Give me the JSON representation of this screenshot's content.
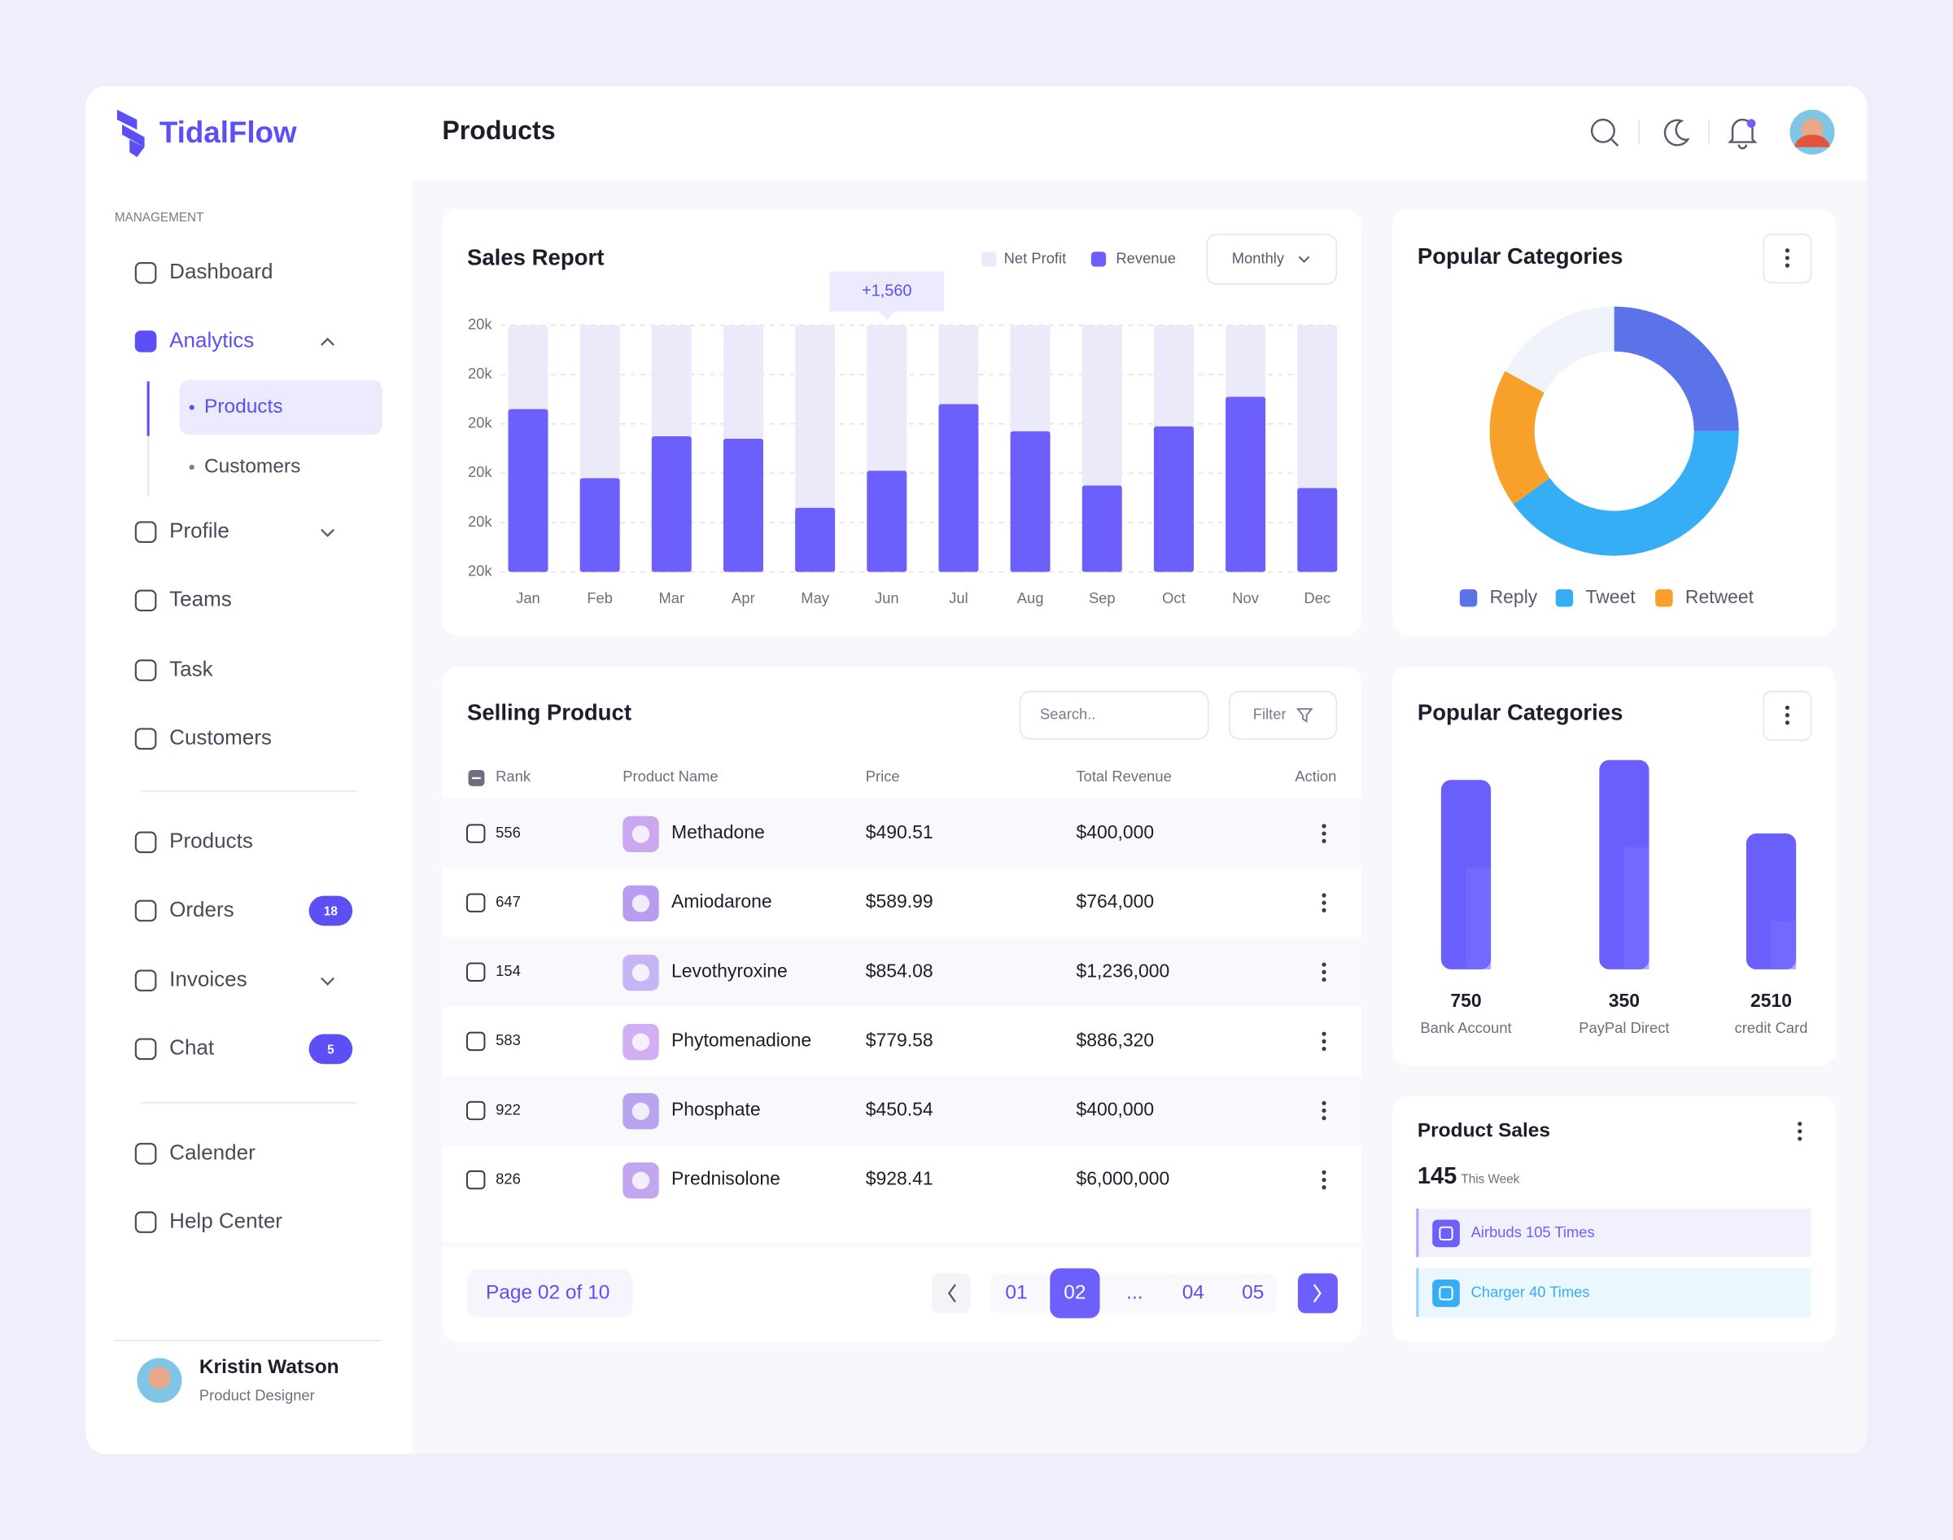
{
  "brand": "TidalFlow",
  "header": {
    "title": "Products"
  },
  "sidebar": {
    "section": "MANAGEMENT",
    "items": [
      {
        "label": "Dashboard"
      },
      {
        "label": "Analytics",
        "children": [
          "Products",
          "Customers"
        ]
      },
      {
        "label": "Profile"
      },
      {
        "label": "Teams"
      },
      {
        "label": "Task"
      },
      {
        "label": "Customers"
      },
      {
        "label": "Products"
      },
      {
        "label": "Orders",
        "badge": 18
      },
      {
        "label": "Invoices"
      },
      {
        "label": "Chat",
        "badge": 5
      },
      {
        "label": "Calender"
      },
      {
        "label": "Help Center"
      }
    ],
    "user": {
      "name": "Kristin Watson",
      "role": "Product Designer"
    }
  },
  "sales_report": {
    "period": "Monthly"
  },
  "chart_data": [
    {
      "type": "bar",
      "title": "Sales Report",
      "annotation": "+1,560",
      "categories": [
        "Jan",
        "Feb",
        "Mar",
        "Apr",
        "May",
        "Jun",
        "Jul",
        "Aug",
        "Sep",
        "Oct",
        "Nov",
        "Dec"
      ],
      "series": [
        {
          "name": "Net Profit",
          "color": "#ebeafb",
          "values": [
            100,
            100,
            100,
            100,
            100,
            100,
            100,
            100,
            100,
            100,
            100,
            100
          ]
        },
        {
          "name": "Revenue",
          "color": "#6c5ffc",
          "values": [
            66,
            38,
            55,
            54,
            26,
            41,
            68,
            57,
            35,
            59,
            71,
            34
          ]
        }
      ],
      "ylim": [
        0,
        100
      ],
      "yticks": [
        {
          "value": 0,
          "label": "20k"
        },
        {
          "value": 20,
          "label": "20k"
        },
        {
          "value": 40,
          "label": "20k"
        },
        {
          "value": 60,
          "label": "20k"
        },
        {
          "value": 80,
          "label": "20k"
        },
        {
          "value": 100,
          "label": "20k"
        }
      ],
      "grid": true
    },
    {
      "type": "pie",
      "title": "Popular Categories",
      "donut": true,
      "categories": [
        "Reply",
        "Tweet",
        "Retweet"
      ],
      "values": [
        25,
        40,
        18
      ],
      "colors": [
        "#5b73e8",
        "#35aef5",
        "#f7a12a"
      ]
    }
  ],
  "selling_product": {
    "title": "Selling Product",
    "search_placeholder": "Search..",
    "filter": "Filter",
    "columns": [
      "Rank",
      "Product Name",
      "Price",
      "Total Revenue",
      "Action"
    ],
    "rows": [
      [
        "556",
        "Methadone",
        "$490.51",
        "$400,000"
      ],
      [
        "647",
        "Amiodarone",
        "$589.99",
        "$764,000"
      ],
      [
        "154",
        "Levothyroxine",
        "$854.08",
        "$1,236,000"
      ],
      [
        "583",
        "Phytomenadione",
        "$779.58",
        "$886,320"
      ],
      [
        "922",
        "Phosphate",
        "$450.54",
        "$400,000"
      ],
      [
        "826",
        "Prednisolone",
        "$928.41",
        "$6,000,000"
      ]
    ],
    "pagination": {
      "label": "Page 02 of 10",
      "pages": [
        "01",
        "02",
        "...",
        "04",
        "05"
      ]
    }
  },
  "payment_categories": {
    "title": "Popular Categories",
    "items": [
      {
        "value": 750,
        "label": "Bank Account"
      },
      {
        "value": 350,
        "label": "PayPal Direct"
      },
      {
        "value": 2510,
        "label": "credit Card"
      }
    ]
  },
  "product_sales": {
    "title": "Product Sales",
    "count": 145,
    "period": "This Week",
    "items": [
      "Airbuds 105 Times",
      "Charger 40 Times"
    ]
  }
}
